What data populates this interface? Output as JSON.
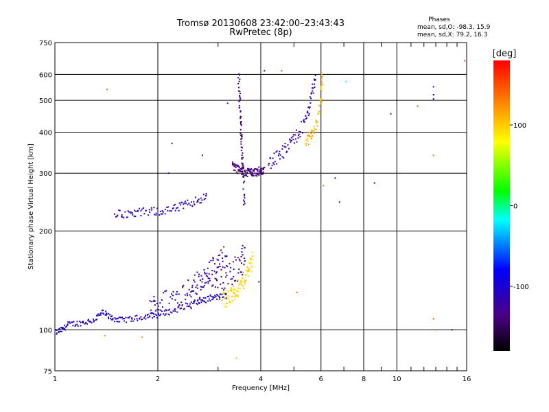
{
  "chart_data": {
    "type": "scatter",
    "title": "Tromsø 20130608 23:42:00–23:43:43",
    "subtitle": "RwPretec (8p)",
    "xlabel": "Frequency [MHz]",
    "ylabel": "Stationary phase Virtual Height [km]",
    "x_scale": "log",
    "y_scale": "log",
    "xlim": [
      1,
      16
    ],
    "ylim": [
      75,
      750
    ],
    "x_ticks": [
      1,
      2,
      4,
      6,
      8,
      10,
      16
    ],
    "y_ticks": [
      75,
      100,
      200,
      300,
      400,
      500,
      600,
      750
    ],
    "grid": true,
    "stats": {
      "heading": "Phases",
      "line_o": "mean, sd,O: -98.3, 15.9",
      "line_x": "mean, sd,X:  79.2, 16.3"
    },
    "colorbar": {
      "label": "[deg]",
      "range": [
        -180,
        180
      ],
      "ticks": [
        100,
        0,
        -100
      ]
    },
    "traces": [
      {
        "x": [
          1.0,
          1.05,
          1.1,
          1.2,
          1.3,
          1.38,
          1.45,
          1.55,
          1.7,
          1.85,
          2.0,
          2.2,
          2.4,
          2.6,
          2.8,
          3.0,
          3.2
        ],
        "y": [
          98,
          100,
          104,
          105,
          107,
          113,
          109,
          107,
          108,
          110,
          111,
          114,
          118,
          121,
          124,
          126,
          127
        ],
        "phase": -105,
        "spread": 2.0
      },
      {
        "x": [
          1.9,
          2.0,
          2.2,
          2.4,
          2.6,
          2.8,
          3.0,
          3.2
        ],
        "y": [
          117,
          120,
          125,
          132,
          140,
          150,
          160,
          170
        ],
        "phase": -110,
        "spread": 8.0
      },
      {
        "x": [
          2.5,
          2.7,
          2.9,
          3.1,
          3.3,
          3.5,
          3.6
        ],
        "y": [
          127,
          135,
          140,
          145,
          150,
          160,
          170
        ],
        "phase": -125,
        "spread": 10.0
      },
      {
        "x": [
          3.1,
          3.2,
          3.3,
          3.4,
          3.5,
          3.6,
          3.7,
          3.8
        ],
        "y": [
          124,
          125,
          128,
          132,
          136,
          145,
          155,
          165
        ],
        "phase": 95,
        "spread": 6.0
      },
      {
        "x": [
          1.5,
          1.65,
          1.8,
          2.0,
          2.2,
          2.4,
          2.6,
          2.8
        ],
        "y": [
          226,
          225,
          228,
          230,
          232,
          240,
          248,
          255
        ],
        "phase": -108,
        "spread": 3.0
      },
      {
        "x": [
          3.3,
          3.4,
          3.5,
          3.6,
          3.7,
          3.8,
          3.9,
          4.0,
          4.1
        ],
        "y": [
          320,
          310,
          305,
          303,
          302,
          302,
          303,
          305,
          308
        ],
        "phase": -138,
        "spread": 3.0
      },
      {
        "x": [
          3.45,
          3.47,
          3.5,
          3.52,
          3.55,
          3.58
        ],
        "y": [
          600,
          500,
          420,
          360,
          300,
          240
        ],
        "phase": -140,
        "spread": 4.0
      },
      {
        "x": [
          4.2,
          4.5,
          4.8,
          5.1,
          5.4,
          5.6,
          5.8
        ],
        "y": [
          320,
          335,
          360,
          390,
          430,
          500,
          600
        ],
        "phase": -115,
        "spread": 5.0
      },
      {
        "x": [
          5.4,
          5.6,
          5.8,
          6.0,
          6.05
        ],
        "y": [
          370,
          390,
          420,
          500,
          600
        ],
        "phase": 110,
        "spread": 4.0
      }
    ],
    "scattered_points": [
      {
        "x": 1.42,
        "y": 540,
        "phase": 140
      },
      {
        "x": 4.6,
        "y": 615,
        "phase": 150
      },
      {
        "x": 5.1,
        "y": 130,
        "phase": 150
      },
      {
        "x": 6.1,
        "y": 275,
        "phase": 140
      },
      {
        "x": 6.6,
        "y": 290,
        "phase": -110
      },
      {
        "x": 6.8,
        "y": 245,
        "phase": -115
      },
      {
        "x": 7.1,
        "y": 570,
        "phase": -20
      },
      {
        "x": 8.6,
        "y": 280,
        "phase": -140
      },
      {
        "x": 9.6,
        "y": 455,
        "phase": -115
      },
      {
        "x": 11.5,
        "y": 480,
        "phase": 150
      },
      {
        "x": 12.8,
        "y": 550,
        "phase": -100
      },
      {
        "x": 12.8,
        "y": 520,
        "phase": -100
      },
      {
        "x": 12.8,
        "y": 505,
        "phase": -100
      },
      {
        "x": 12.8,
        "y": 340,
        "phase": 135
      },
      {
        "x": 12.8,
        "y": 108,
        "phase": 150
      },
      {
        "x": 13.0,
        "y": 100,
        "phase": 145
      },
      {
        "x": 14.5,
        "y": 100,
        "phase": -95
      },
      {
        "x": 15.8,
        "y": 660,
        "phase": 155
      },
      {
        "x": 3.4,
        "y": 82,
        "phase": 110
      },
      {
        "x": 1.8,
        "y": 95,
        "phase": 120
      },
      {
        "x": 1.4,
        "y": 96,
        "phase": 120
      },
      {
        "x": 2.2,
        "y": 370,
        "phase": -120
      },
      {
        "x": 2.15,
        "y": 300,
        "phase": -110
      },
      {
        "x": 2.7,
        "y": 340,
        "phase": -140
      },
      {
        "x": 3.2,
        "y": 490,
        "phase": -110
      },
      {
        "x": 4.1,
        "y": 615,
        "phase": -100
      },
      {
        "x": 3.95,
        "y": 140,
        "phase": -110
      }
    ]
  }
}
